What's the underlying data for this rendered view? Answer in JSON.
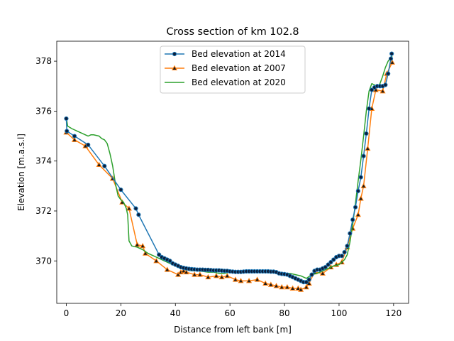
{
  "chart_data": {
    "type": "line",
    "title": "Cross section of km 102.8",
    "xlabel": "Distance from left bank [m]",
    "ylabel": "Elevation [m.a.s.l]",
    "xlim": [
      -3.5,
      125.5
    ],
    "ylim": [
      368.3,
      378.8
    ],
    "xticks": [
      0,
      20,
      40,
      60,
      80,
      100,
      120
    ],
    "yticks": [
      370,
      372,
      374,
      376,
      378
    ],
    "grid": false,
    "legend_position": "top-center",
    "series": [
      {
        "name": "Bed elevation at 2014",
        "color": "#1f77b4",
        "marker": "circle",
        "marker_color": "#0a1e3c",
        "x": [
          0,
          0.2,
          3,
          8,
          14,
          20,
          25.5,
          26.5,
          34,
          35,
          36,
          37,
          38,
          39,
          40,
          41,
          42,
          43,
          44,
          45,
          46,
          47,
          48,
          49,
          50,
          51,
          52,
          53,
          54,
          55,
          56,
          57,
          58,
          59,
          60,
          61,
          62,
          63,
          64,
          65,
          66,
          67,
          68,
          69,
          70,
          71,
          72,
          73,
          74,
          75,
          76,
          77,
          78,
          79,
          80,
          81,
          82,
          83,
          84,
          85,
          86,
          87,
          88,
          89,
          90,
          91,
          92,
          93,
          94,
          95,
          96,
          97,
          98,
          99,
          100,
          101,
          102,
          103,
          104,
          105,
          106,
          107,
          108,
          109,
          110,
          111,
          112,
          113,
          114,
          115,
          116,
          117,
          118,
          119,
          119.3
        ],
        "y": [
          375.7,
          375.2,
          375.0,
          374.65,
          373.8,
          372.85,
          372.1,
          371.85,
          370.25,
          370.15,
          370.1,
          370.05,
          370.0,
          369.9,
          369.85,
          369.8,
          369.75,
          369.72,
          369.7,
          369.68,
          369.67,
          369.66,
          369.65,
          369.65,
          369.65,
          369.64,
          369.64,
          369.63,
          369.62,
          369.62,
          369.62,
          369.61,
          369.6,
          369.6,
          369.58,
          369.57,
          369.56,
          369.56,
          369.56,
          369.57,
          369.58,
          369.58,
          369.58,
          369.58,
          369.58,
          369.58,
          369.58,
          369.58,
          369.58,
          369.57,
          369.57,
          369.55,
          369.5,
          369.48,
          369.47,
          369.45,
          369.4,
          369.35,
          369.3,
          369.25,
          369.2,
          369.15,
          369.15,
          369.25,
          369.45,
          369.6,
          369.65,
          369.65,
          369.7,
          369.75,
          369.85,
          369.95,
          370.05,
          370.15,
          370.2,
          370.2,
          370.35,
          370.6,
          371.1,
          371.65,
          372.15,
          372.8,
          373.35,
          374.2,
          375.1,
          376.1,
          376.85,
          376.95,
          377.0,
          377.0,
          377.0,
          377.05,
          377.5,
          378.1,
          378.3
        ]
      },
      {
        "name": "Bed elevation at 2007",
        "color": "#ff7f0e",
        "marker": "triangle",
        "marker_color": "#1a1a1a",
        "x": [
          0,
          3,
          7,
          12,
          17,
          20.5,
          23,
          26,
          28,
          29,
          33,
          37,
          41,
          42,
          43,
          44,
          47,
          49,
          52,
          55,
          57,
          59,
          62,
          64,
          67,
          70,
          73,
          75,
          77,
          79,
          81,
          83,
          85,
          86,
          88,
          89,
          91,
          94,
          97,
          99,
          101,
          103,
          105,
          107,
          108,
          109,
          110.5,
          112,
          113.5,
          116,
          117.5,
          119.5
        ],
        "y": [
          375.15,
          374.85,
          374.6,
          373.85,
          373.3,
          372.35,
          372.1,
          370.65,
          370.6,
          370.3,
          370.0,
          369.65,
          369.45,
          369.55,
          369.6,
          369.55,
          369.45,
          369.45,
          369.35,
          369.4,
          369.35,
          369.4,
          369.25,
          369.2,
          369.2,
          369.25,
          369.1,
          369.05,
          369.0,
          368.95,
          368.95,
          368.9,
          368.9,
          368.85,
          368.95,
          369.1,
          369.55,
          369.5,
          369.75,
          369.85,
          369.95,
          370.55,
          371.3,
          371.85,
          372.5,
          373.0,
          374.5,
          376.1,
          376.85,
          376.8,
          377.5,
          377.95
        ]
      },
      {
        "name": "Bed elevation at 2020",
        "color": "#2ca02c",
        "marker": "none",
        "x": [
          0,
          0.5,
          2,
          4,
          6,
          8,
          9,
          10,
          12,
          13,
          14,
          15,
          16,
          17,
          18,
          19,
          20,
          21,
          22,
          22.5,
          23,
          24,
          26,
          28,
          30,
          32,
          34,
          36,
          38,
          40,
          42,
          44,
          46,
          48,
          50,
          52,
          54,
          56,
          58,
          60,
          62,
          64,
          66,
          68,
          70,
          72,
          74,
          76,
          78,
          80,
          82,
          84,
          86,
          88,
          90,
          92,
          94,
          96,
          98,
          100,
          101,
          102,
          103,
          104,
          105,
          106,
          107,
          108,
          109,
          110,
          111,
          112,
          113,
          114,
          115,
          116,
          117,
          118,
          119,
          119.5
        ],
        "y": [
          375.75,
          375.4,
          375.3,
          375.2,
          375.1,
          375.0,
          375.05,
          375.05,
          375.0,
          374.9,
          374.85,
          374.7,
          374.3,
          373.8,
          373.1,
          372.6,
          372.45,
          372.35,
          372.1,
          371.85,
          370.8,
          370.6,
          370.55,
          370.45,
          370.3,
          370.2,
          370.1,
          370.0,
          369.9,
          369.8,
          369.7,
          369.65,
          369.6,
          369.6,
          369.58,
          369.55,
          369.55,
          369.5,
          369.5,
          369.55,
          369.55,
          369.6,
          369.55,
          369.55,
          369.55,
          369.58,
          369.6,
          369.6,
          369.5,
          369.5,
          369.5,
          369.45,
          369.4,
          369.3,
          369.45,
          369.5,
          369.6,
          369.7,
          369.8,
          369.85,
          369.95,
          370.05,
          370.25,
          370.75,
          371.45,
          372.3,
          373.2,
          374.05,
          375.0,
          376.0,
          376.8,
          377.1,
          377.05,
          376.95,
          377.1,
          377.4,
          377.75,
          378.0,
          378.15,
          378.2
        ]
      }
    ]
  }
}
